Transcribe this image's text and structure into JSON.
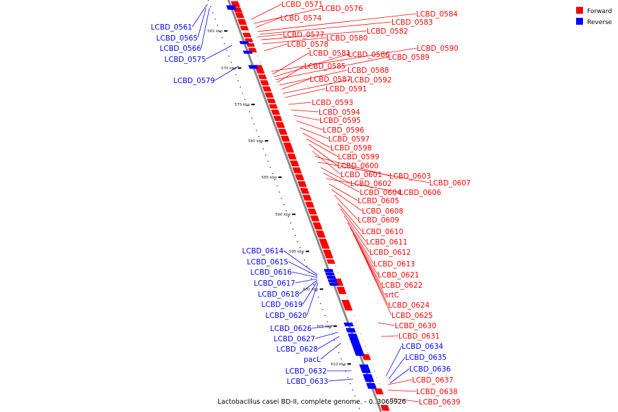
{
  "caption": "Lactobacillus casei BD-II, complete genome. - 0..3069926",
  "legend": [
    {
      "label": "Forward",
      "color": "#ff0000"
    },
    {
      "label": "Reverse",
      "color": "#0000ff"
    }
  ],
  "colors": {
    "forward": "#ff0000",
    "reverse": "#0000ff",
    "backbone": "#8a8a8a"
  },
  "ticks": [
    "565 kbp",
    "570 kbp",
    "575 kbp",
    "580 kbp",
    "585 kbp",
    "590 kbp",
    "595 kbp",
    "600 kbp",
    "605 kbp",
    "610 kbp"
  ],
  "forward_labels": [
    "LCBD_0571",
    "LCBD_0576",
    "LCBD_0584",
    "LCBD_0574",
    "LCBD_0583",
    "LCBD_0582",
    "LCBD_0577",
    "LCBD_0580",
    "LCBD_0578",
    "LCBD_0590",
    "LCBD_0581",
    "LCBD_0586",
    "LCBD_0589",
    "LCBD_0585",
    "LCBD_0588",
    "LCBD_0587",
    "LCBD_0592",
    "LCBD_0591",
    "LCBD_0593",
    "LCBD_0594",
    "LCBD_0595",
    "LCBD_0596",
    "LCBD_0597",
    "LCBD_0598",
    "LCBD_0599",
    "LCBD_0600",
    "LCBD_0601",
    "LCBD_0603",
    "LCBD_0607",
    "LCBD_0602",
    "LCBD_0604",
    "LCBD_0606",
    "LCBD_0605",
    "LCBD_0608",
    "LCBD_0609",
    "LCBD_0610",
    "LCBD_0611",
    "LCBD_0612",
    "LCBD_0613",
    "LCBD_0621",
    "LCBD_0622",
    "srtC",
    "LCBD_0624",
    "LCBD_0625",
    "LCBD_0630",
    "LCBD_0631",
    "LCBD_0637",
    "LCBD_0638",
    "LCBD_0639"
  ],
  "reverse_labels_left": [
    "LCBD_0561",
    "LCBD_0565",
    "LCBD_0566",
    "LCBD_0575",
    "LCBD_0579",
    "LCBD_0614",
    "LCBD_0615",
    "LCBD_0616",
    "LCBD_0617",
    "LCBD_0618",
    "LCBD_0619",
    "LCBD_0620",
    "LCBD_0626",
    "LCBD_0627",
    "LCBD_0628",
    "pacL",
    "LCBD_0632",
    "LCBD_0633"
  ],
  "reverse_labels_right": [
    "LCBD_0634",
    "LCBD_0635",
    "LCBD_0636"
  ]
}
